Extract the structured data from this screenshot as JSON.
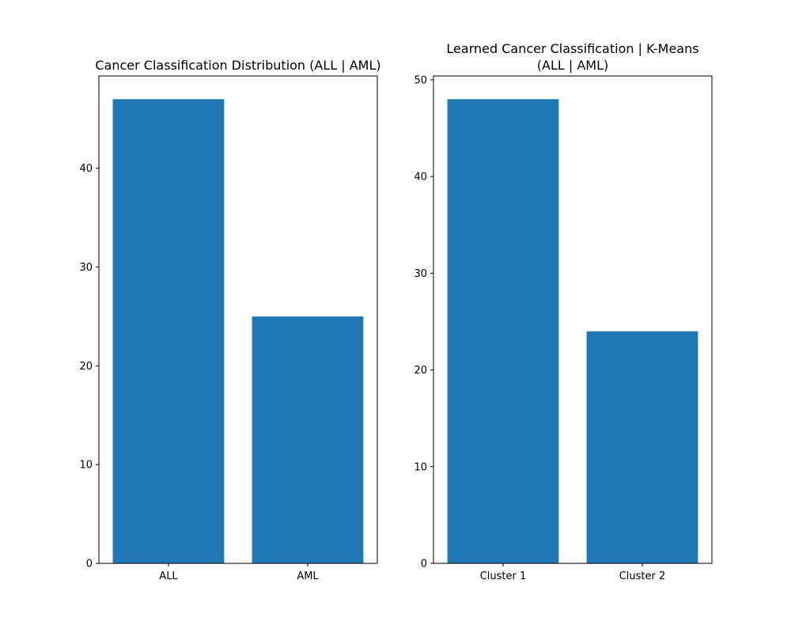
{
  "chart_data": [
    {
      "type": "bar",
      "title_lines": [
        "Cancer Classification Distribution (ALL | AML)"
      ],
      "xlabel": "",
      "ylabel": "",
      "categories": [
        "ALL",
        "AML"
      ],
      "values": [
        47,
        25
      ],
      "ylim": [
        0,
        49.35
      ],
      "yticks": [
        0,
        10,
        20,
        30,
        40
      ],
      "bar_color": "#1f77b4",
      "grid": false
    },
    {
      "type": "bar",
      "title_lines": [
        "Learned Cancer Classification | K-Means",
        "(ALL | AML)"
      ],
      "xlabel": "",
      "ylabel": "",
      "categories": [
        "Cluster 1",
        "Cluster 2"
      ],
      "values": [
        48,
        24
      ],
      "ylim": [
        0,
        50.4
      ],
      "yticks": [
        0,
        10,
        20,
        30,
        40,
        50
      ],
      "bar_color": "#1f77b4",
      "grid": false
    }
  ]
}
